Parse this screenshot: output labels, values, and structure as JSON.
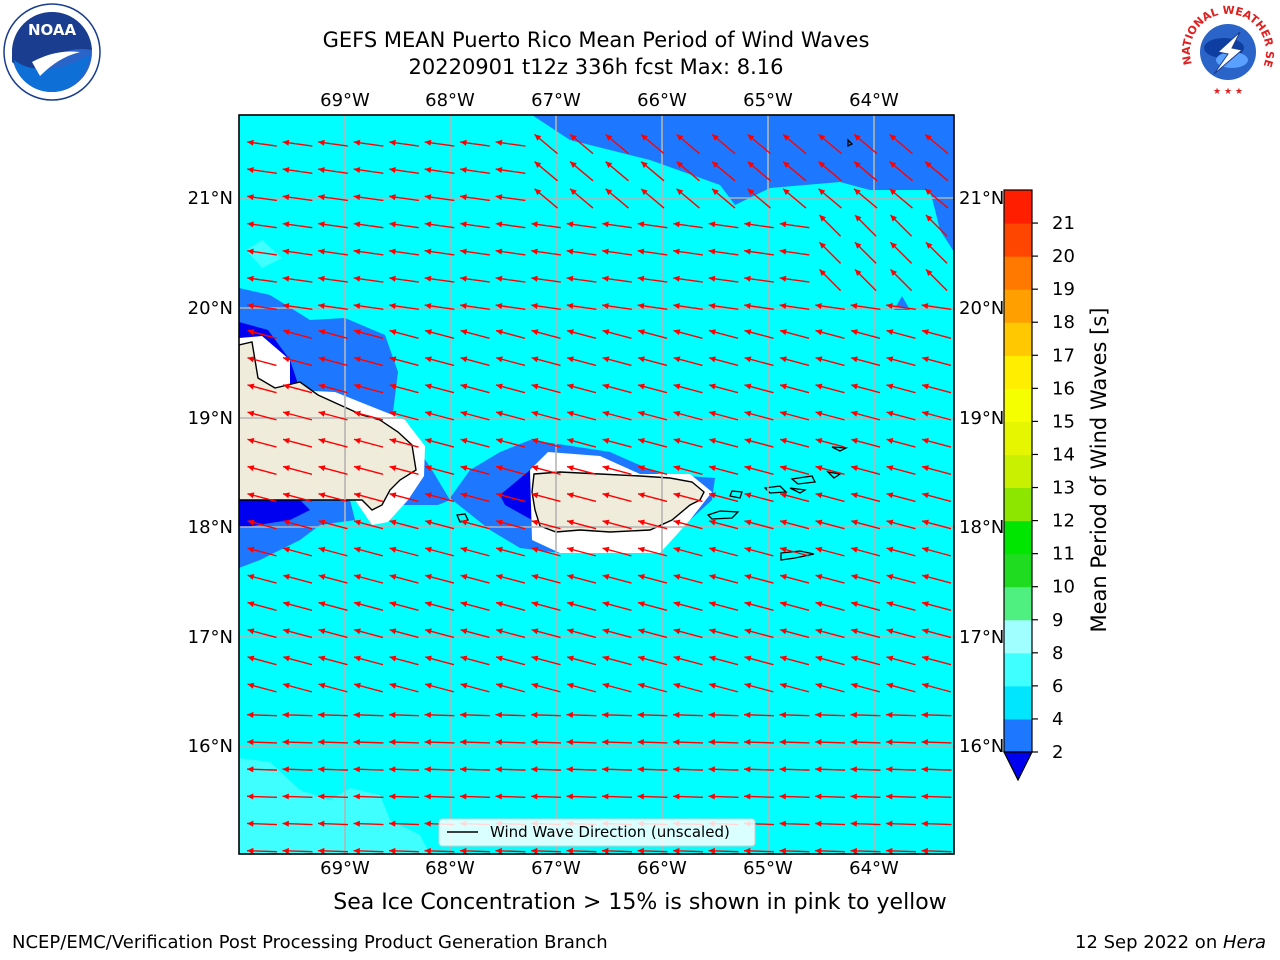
{
  "title_line1": "GEFS MEAN Puerto Rico Mean Period of Wind Waves",
  "title_line2": "20220901 t12z 336h fcst   Max: 8.16",
  "lon_labels": [
    "69°W",
    "68°W",
    "67°W",
    "66°W",
    "65°W",
    "64°W"
  ],
  "lat_labels": [
    "21°N",
    "20°N",
    "19°N",
    "18°N",
    "17°N",
    "16°N"
  ],
  "legend_label": "Wind Wave Direction (unscaled)",
  "colorbar": {
    "label": "Mean Period of Wind Waves [s]",
    "ticks": [
      "2",
      "4",
      "6",
      "8",
      "9",
      "10",
      "11",
      "12",
      "13",
      "14",
      "15",
      "16",
      "17",
      "18",
      "19",
      "20",
      "21"
    ],
    "colors": [
      "#1e78ff",
      "#00e6ff",
      "#40ffff",
      "#a0ffff",
      "#50f080",
      "#20dc20",
      "#00e600",
      "#8ce600",
      "#c8f000",
      "#e6f500",
      "#f5ff00",
      "#ffee00",
      "#ffc800",
      "#ffa000",
      "#ff7800",
      "#ff4600",
      "#ff1e00"
    ],
    "under_color": "#0000f0"
  },
  "ice_note": "Sea Ice Concentration > 15% is shown in pink to yellow",
  "footer_left": "NCEP/EMC/Verification Post Processing Product Generation Branch",
  "footer_right_prefix": "12 Sep 2022 on ",
  "footer_right_host": "Hera",
  "logos": {
    "noaa_text": "NOAA",
    "nws_text": "NATIONAL WEATHER SERVICE"
  },
  "colors": {
    "ocean": "#00ffff",
    "medium_blue": "#1e78ff",
    "deep_blue": "#0000f0",
    "land": "#f0ecdc",
    "arrow": "#ff0000",
    "grid": "#b4b4b4"
  }
}
